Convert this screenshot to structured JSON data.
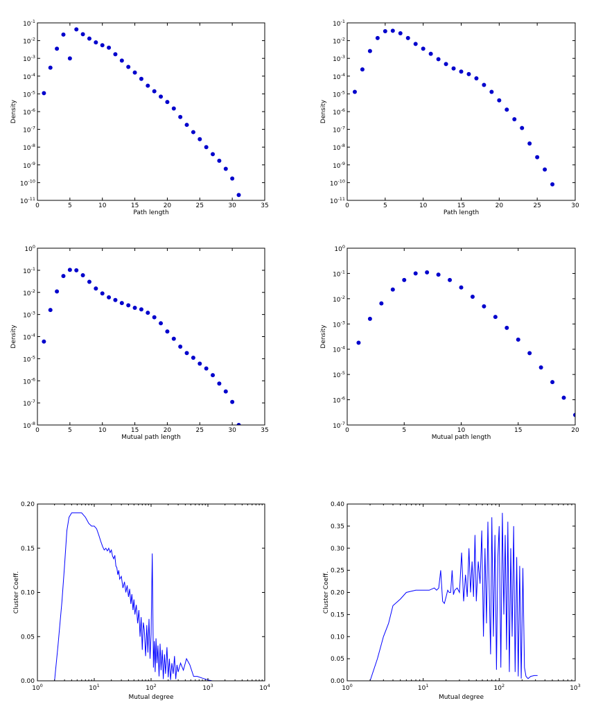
{
  "chart_data": [
    {
      "type": "scatter",
      "xlabel": "Path length",
      "ylabel": "Density",
      "xlim": [
        0,
        35
      ],
      "xticks": [
        0,
        5,
        10,
        15,
        20,
        25,
        30,
        35
      ],
      "xscale": "linear",
      "yscale": "log",
      "ylim_exp": [
        -11,
        -1
      ],
      "yticks_exp": [
        -11,
        -10,
        -9,
        -8,
        -7,
        -6,
        -5,
        -4,
        -3,
        -2,
        -1
      ],
      "color": "#0000cc",
      "x": [
        1,
        2,
        3,
        4,
        5,
        6,
        7,
        8,
        9,
        10,
        11,
        12,
        13,
        14,
        15,
        16,
        17,
        18,
        19,
        20,
        21,
        22,
        23,
        24,
        25,
        26,
        27,
        28,
        29,
        30,
        31
      ],
      "y": [
        1.1e-05,
        0.0003,
        0.0035,
        0.022,
        0.001,
        0.043,
        0.023,
        0.013,
        0.008,
        0.0055,
        0.004,
        0.0017,
        0.00075,
        0.00033,
        0.00016,
        7e-05,
        2.9e-05,
        1.4e-05,
        7e-06,
        3.5e-06,
        1.5e-06,
        5e-07,
        1.8e-07,
        7e-08,
        2.8e-08,
        1e-08,
        4e-09,
        1.7e-09,
        6e-10,
        1.7e-10,
        2e-11
      ]
    },
    {
      "type": "scatter",
      "xlabel": "Path length",
      "ylabel": "Density",
      "xlim": [
        0,
        30
      ],
      "xticks": [
        0,
        5,
        10,
        15,
        20,
        25,
        30
      ],
      "xscale": "linear",
      "yscale": "log",
      "ylim_exp": [
        -11,
        -1
      ],
      "yticks_exp": [
        -11,
        -10,
        -9,
        -8,
        -7,
        -6,
        -5,
        -4,
        -3,
        -2,
        -1
      ],
      "color": "#0000cc",
      "x": [
        1,
        2,
        3,
        4,
        5,
        6,
        7,
        8,
        9,
        10,
        11,
        12,
        13,
        14,
        15,
        16,
        17,
        18,
        19,
        20,
        21,
        22,
        23,
        24,
        25,
        26,
        27
      ],
      "y": [
        1.3e-05,
        0.00024,
        0.0026,
        0.014,
        0.034,
        0.036,
        0.026,
        0.014,
        0.0065,
        0.0035,
        0.0018,
        0.0009,
        0.00048,
        0.00027,
        0.00018,
        0.00013,
        7.5e-05,
        3.2e-05,
        1.3e-05,
        4.3e-06,
        1.3e-06,
        3.7e-07,
        1.2e-07,
        1.6e-08,
        2.7e-09,
        5.5e-10,
        8e-11
      ]
    },
    {
      "type": "scatter",
      "xlabel": "Mutual path length",
      "ylabel": "Density",
      "xlim": [
        0,
        35
      ],
      "xticks": [
        0,
        5,
        10,
        15,
        20,
        25,
        30,
        35
      ],
      "xscale": "linear",
      "yscale": "log",
      "ylim_exp": [
        -8,
        0
      ],
      "yticks_exp": [
        -8,
        -7,
        -6,
        -5,
        -4,
        -3,
        -2,
        -1,
        0
      ],
      "color": "#0000cc",
      "x": [
        1,
        2,
        3,
        4,
        5,
        6,
        7,
        8,
        9,
        10,
        11,
        12,
        13,
        14,
        15,
        16,
        17,
        18,
        19,
        20,
        21,
        22,
        23,
        24,
        25,
        26,
        27,
        28,
        29,
        30,
        31
      ],
      "y": [
        6e-05,
        0.0016,
        0.011,
        0.055,
        0.105,
        0.1,
        0.06,
        0.03,
        0.015,
        0.009,
        0.006,
        0.0045,
        0.0033,
        0.0026,
        0.002,
        0.0017,
        0.0012,
        0.00075,
        0.0004,
        0.00017,
        8e-05,
        3.5e-05,
        1.8e-05,
        1.1e-05,
        6e-06,
        3.6e-06,
        1.8e-06,
        7.5e-07,
        3.3e-07,
        1.1e-07,
        1e-08
      ]
    },
    {
      "type": "scatter",
      "xlabel": "Mutual path length",
      "ylabel": "Density",
      "xlim": [
        0,
        20
      ],
      "xticks": [
        0,
        5,
        10,
        15,
        20
      ],
      "xscale": "linear",
      "yscale": "log",
      "ylim_exp": [
        -7,
        0
      ],
      "yticks_exp": [
        -7,
        -6,
        -5,
        -4,
        -3,
        -2,
        -1,
        0
      ],
      "color": "#0000cc",
      "x": [
        1,
        2,
        3,
        4,
        5,
        6,
        7,
        8,
        9,
        10,
        11,
        12,
        13,
        14,
        15,
        16,
        17,
        18,
        19,
        20
      ],
      "y": [
        0.00018,
        0.0016,
        0.0065,
        0.023,
        0.055,
        0.1,
        0.11,
        0.09,
        0.055,
        0.028,
        0.012,
        0.005,
        0.0019,
        0.0007,
        0.00024,
        7e-05,
        1.9e-05,
        5e-06,
        1.2e-06,
        2.5e-07
      ]
    },
    {
      "type": "line",
      "xlabel": "Mutual degree",
      "ylabel": "Cluster Coeff.",
      "xscale": "log",
      "xlim_exp": [
        0,
        4
      ],
      "xticks_exp": [
        0,
        1,
        2,
        3,
        4
      ],
      "yscale": "linear",
      "ylim": [
        0,
        0.2
      ],
      "yticks": [
        "0.00",
        "0.05",
        "0.10",
        "0.15",
        "0.20"
      ],
      "color": "#0000ff",
      "x": [
        2,
        2.3,
        2.7,
        3,
        3.3,
        3.6,
        4,
        4.5,
        5,
        6,
        7,
        8,
        9,
        10,
        11,
        12,
        13,
        14,
        15,
        16,
        17,
        18,
        19,
        20,
        21,
        22,
        23,
        24,
        25,
        26,
        27,
        28,
        30,
        32,
        34,
        36,
        38,
        40,
        42,
        44,
        46,
        48,
        50,
        52,
        55,
        58,
        61,
        64,
        67,
        70,
        73,
        76,
        80,
        84,
        88,
        92,
        96,
        100,
        105,
        110,
        114,
        118,
        122,
        127,
        132,
        138,
        144,
        150,
        157,
        164,
        172,
        180,
        190,
        200,
        210,
        220,
        232,
        245,
        258,
        272,
        286,
        300,
        330,
        370,
        420,
        480,
        560,
        650,
        800,
        1000,
        1200,
        1500
      ],
      "y": [
        0,
        0.04,
        0.09,
        0.13,
        0.17,
        0.185,
        0.19,
        0.19,
        0.19,
        0.19,
        0.185,
        0.178,
        0.175,
        0.175,
        0.172,
        0.165,
        0.158,
        0.152,
        0.148,
        0.15,
        0.147,
        0.15,
        0.145,
        0.148,
        0.141,
        0.138,
        0.142,
        0.13,
        0.128,
        0.12,
        0.125,
        0.115,
        0.118,
        0.105,
        0.112,
        0.1,
        0.108,
        0.095,
        0.104,
        0.087,
        0.098,
        0.08,
        0.092,
        0.075,
        0.086,
        0.065,
        0.08,
        0.05,
        0.072,
        0.035,
        0.066,
        0.058,
        0.028,
        0.063,
        0.032,
        0.07,
        0.025,
        0.052,
        0.144,
        0.015,
        0.045,
        0.01,
        0.048,
        0.02,
        0.04,
        0.005,
        0.042,
        0.012,
        0.035,
        0.002,
        0.03,
        0.008,
        0.038,
        0.004,
        0.025,
        0.001,
        0.02,
        0.008,
        0.028,
        0.002,
        0.018,
        0.01,
        0.02,
        0.012,
        0.025,
        0.018,
        0.005,
        0.005,
        0.003,
        0.001,
        0,
        0
      ]
    },
    {
      "type": "line",
      "xlabel": "Mutual degree",
      "ylabel": "Cluster Coeff.",
      "xscale": "log",
      "xlim_exp": [
        0,
        3
      ],
      "xticks_exp": [
        0,
        1,
        2,
        3
      ],
      "yscale": "linear",
      "ylim": [
        0,
        0.4
      ],
      "yticks": [
        "0.00",
        "0.05",
        "0.10",
        "0.15",
        "0.20",
        "0.25",
        "0.30",
        "0.35",
        "0.40"
      ],
      "color": "#0000ff",
      "x": [
        2,
        2.5,
        3,
        3.5,
        4,
        5,
        6,
        8,
        10,
        12,
        14,
        15,
        16,
        17,
        18,
        19,
        20,
        21,
        22,
        23,
        24,
        25,
        26,
        28,
        30,
        32,
        34,
        36,
        38,
        40,
        42,
        44,
        46,
        48,
        50,
        53,
        56,
        59,
        62,
        65,
        68,
        71,
        74,
        77,
        80,
        84,
        88,
        92,
        96,
        100,
        105,
        110,
        115,
        120,
        125,
        130,
        136,
        142,
        148,
        155,
        162,
        170,
        178,
        186,
        195,
        205,
        215,
        225,
        240,
        260,
        290,
        320
      ],
      "y": [
        0,
        0.05,
        0.1,
        0.13,
        0.17,
        0.185,
        0.2,
        0.205,
        0.205,
        0.205,
        0.21,
        0.205,
        0.21,
        0.25,
        0.18,
        0.175,
        0.19,
        0.205,
        0.2,
        0.2,
        0.25,
        0.195,
        0.205,
        0.21,
        0.2,
        0.29,
        0.18,
        0.24,
        0.19,
        0.3,
        0.2,
        0.27,
        0.19,
        0.33,
        0.18,
        0.27,
        0.22,
        0.34,
        0.1,
        0.3,
        0.13,
        0.36,
        0.2,
        0.06,
        0.37,
        0.1,
        0.33,
        0.025,
        0.28,
        0.35,
        0.03,
        0.38,
        0.15,
        0.33,
        0.07,
        0.36,
        0.02,
        0.3,
        0.1,
        0.35,
        0.02,
        0.28,
        0.01,
        0.26,
        0.005,
        0.255,
        0.03,
        0.01,
        0.005,
        0.01,
        0.012,
        0.012
      ]
    }
  ]
}
